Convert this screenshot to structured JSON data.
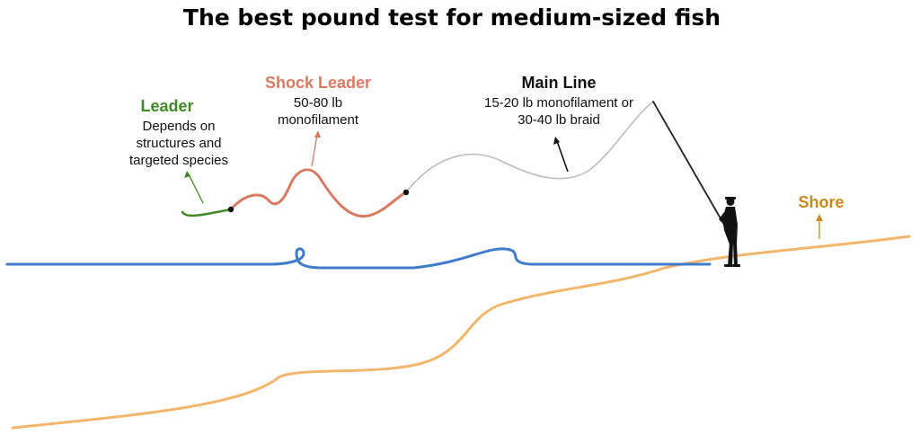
{
  "title": "The best pound test for medium-sized fish",
  "colors": {
    "leader": "#3f8a24",
    "shock_leader": "#d97a63",
    "main_line": "#bdbdbd",
    "water": "#3f7ccc",
    "shore": "#f2b66c",
    "shore_label": "#c98a1a",
    "angler": "#111111"
  },
  "labels": {
    "leader": {
      "title": "Leader",
      "lines": [
        "Depends on",
        "structures and",
        "targeted species"
      ]
    },
    "shock_leader": {
      "title": "Shock Leader",
      "lines": [
        "50-80 lb",
        "monofilament"
      ]
    },
    "main_line": {
      "title": "Main Line",
      "lines": [
        "15-20 lb monofilament or",
        "30-40 lb braid"
      ]
    },
    "shore": {
      "title": "Shore"
    }
  },
  "icons": {
    "angler": "fisherman-silhouette-icon",
    "rod": "fishing-rod-icon"
  }
}
